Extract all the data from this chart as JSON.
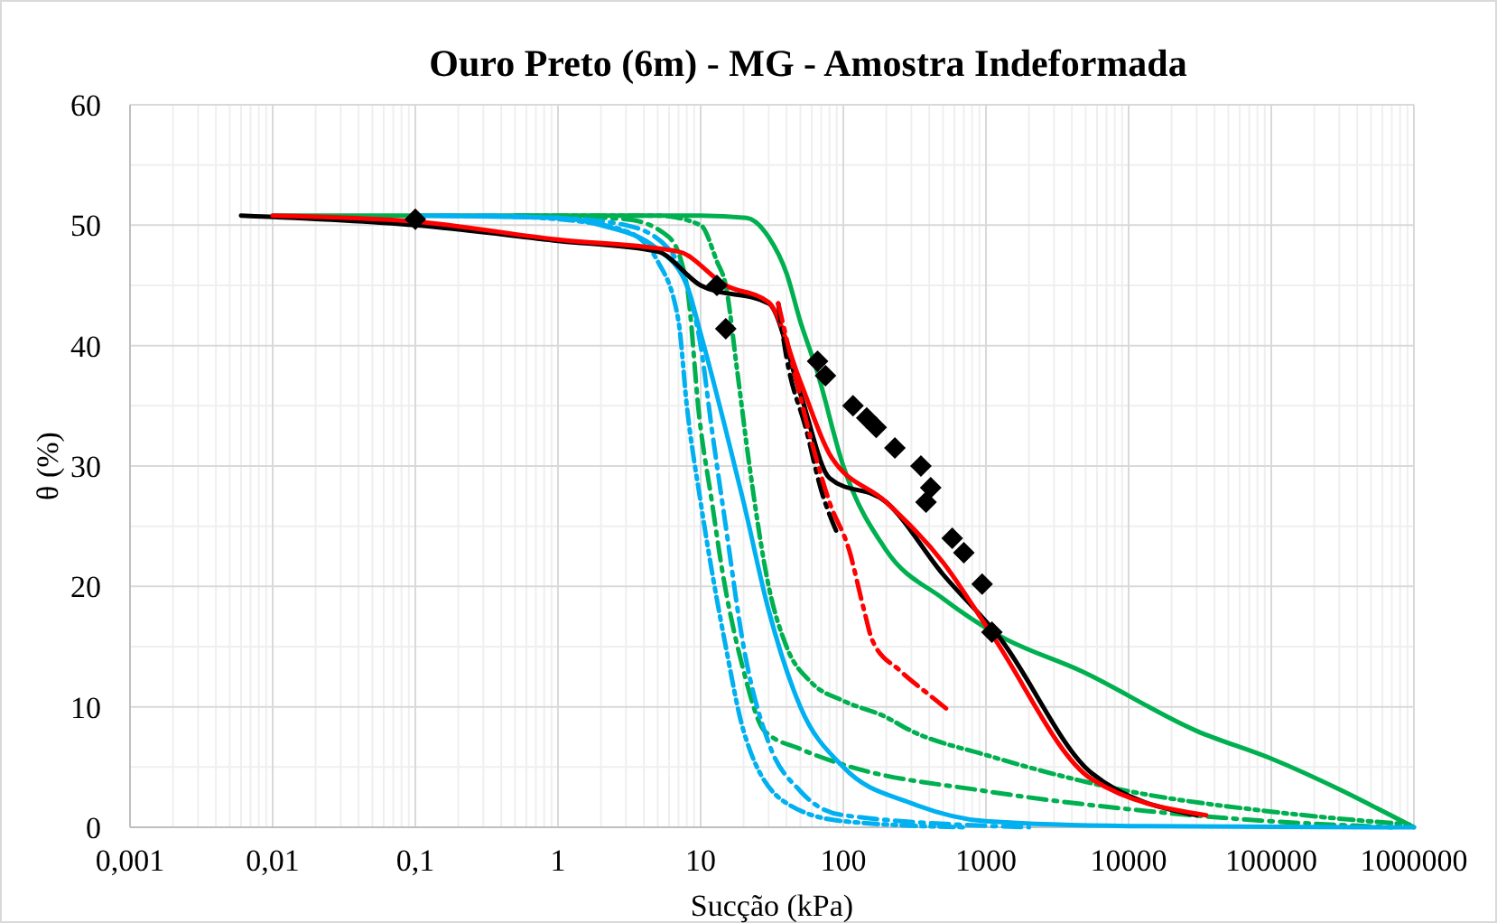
{
  "chart_data": {
    "type": "line",
    "title": "Ouro Preto (6m) - MG -  Amostra  Indeformada",
    "xlabel": "Sucção (kPa)",
    "ylabel": "θ (%)",
    "log": "x",
    "grid": true,
    "xlim": [
      0.001,
      1000000
    ],
    "xticks": [
      {
        "value": 0.001,
        "label": "0,001"
      },
      {
        "value": 0.01,
        "label": "0,01"
      },
      {
        "value": 0.1,
        "label": "0,1"
      },
      1,
      10,
      100,
      1000,
      10000,
      100000,
      1000000
    ],
    "ylim": [
      0,
      60
    ],
    "yticks": [
      0,
      10,
      20,
      30,
      40,
      50,
      60
    ],
    "series": [
      {
        "color": "#00b050",
        "line_style": "solid",
        "x": [
          0.01,
          1,
          10,
          21,
          30,
          40,
          50,
          65,
          100,
          200,
          500,
          1200,
          4800,
          30000,
          100000,
          1000000
        ],
        "values": [
          50.8,
          50.8,
          50.8,
          50.6,
          49,
          46,
          42,
          38,
          30,
          23,
          19,
          16,
          12.9,
          8,
          5.7,
          0
        ]
      },
      {
        "color": "#00b050",
        "line_style": "dotted",
        "x": [
          0.5,
          5,
          10,
          13,
          15,
          18,
          22,
          30,
          40,
          60,
          100,
          195,
          300,
          1000,
          10000,
          100000,
          1000000
        ],
        "values": [
          50.8,
          50.8,
          50,
          47,
          45,
          38,
          30,
          20,
          15,
          12,
          10.5,
          9.2,
          8,
          6,
          3,
          1.3,
          0.2
        ]
      },
      {
        "color": "#00b050",
        "line_style": "dashed",
        "x": [
          0.5,
          3,
          6,
          8,
          9.8,
          12,
          14,
          20,
          28,
          50,
          100,
          1000,
          10000,
          100000,
          700000
        ],
        "values": [
          50.8,
          50.5,
          49,
          45,
          34,
          27,
          21.7,
          13,
          8,
          6.5,
          5.2,
          3,
          1.5,
          0.5,
          0
        ]
      },
      {
        "color": "#00b0f0",
        "line_style": "solid",
        "x": [
          0.1,
          1,
          2,
          5,
          8,
          10,
          15,
          20,
          30,
          50,
          100,
          300,
          1000,
          10000,
          1000000
        ],
        "values": [
          50.8,
          50.6,
          50,
          48,
          45,
          41,
          33,
          27,
          18,
          10,
          5,
          2,
          0.5,
          0.1,
          0
        ]
      },
      {
        "color": "#00b0f0",
        "line_style": "dashed",
        "x": [
          0.15,
          1,
          3,
          6,
          8,
          10,
          12,
          15,
          20,
          30,
          50,
          100,
          2000
        ],
        "values": [
          50.8,
          50.6,
          50,
          48,
          45,
          40,
          33,
          25,
          15,
          7,
          3,
          1,
          0
        ]
      },
      {
        "color": "#00b0f0",
        "line_style": "dotted",
        "x": [
          0.3,
          1,
          3,
          5,
          7,
          8,
          10,
          15,
          20,
          40,
          100,
          700
        ],
        "values": [
          50.8,
          50.5,
          49.5,
          47,
          42,
          35,
          27,
          15,
          8,
          2,
          0.5,
          0
        ]
      },
      {
        "color": "#000000",
        "line_style": "solid",
        "x": [
          0.006,
          0.1,
          1,
          5,
          10,
          30,
          50,
          80,
          200,
          500,
          1200,
          5500,
          30000
        ],
        "values": [
          50.8,
          50,
          48.7,
          47.8,
          45,
          43.5,
          36,
          29,
          27,
          21,
          16,
          4.5,
          1
        ]
      },
      {
        "color": "#ff0000",
        "line_style": "solid",
        "x": [
          0.01,
          0.1,
          1,
          7,
          15,
          30,
          50,
          80,
          200,
          500,
          1100,
          5500,
          35000
        ],
        "values": [
          50.8,
          50.3,
          48.8,
          47.8,
          45,
          43.6,
          37,
          31,
          27,
          22,
          16,
          4,
          1
        ]
      },
      {
        "color": "#000000",
        "line_style": "dashed",
        "x": [
          35,
          40,
          55,
          70,
          90
        ],
        "values": [
          43.5,
          39,
          33,
          28,
          24.5
        ]
      },
      {
        "color": "#ff0000",
        "line_style": "dashed",
        "x": [
          35,
          45,
          60,
          80,
          110,
          140,
          160,
          250,
          400,
          575
        ],
        "values": [
          43.5,
          38,
          32,
          27,
          23,
          18,
          15.5,
          13,
          11,
          9.5
        ]
      },
      {
        "type": "scatter",
        "color": "#000000",
        "marker": "diamond",
        "x": [
          0.1,
          13,
          15,
          66,
          75,
          117,
          146,
          170,
          230,
          350,
          410,
          380,
          580,
          700,
          940,
          1100
        ],
        "values": [
          50.5,
          45,
          41.4,
          38.7,
          37.5,
          35,
          34,
          33.2,
          31.5,
          30,
          28.2,
          27,
          24,
          22.8,
          20.2,
          16.2
        ]
      }
    ]
  }
}
